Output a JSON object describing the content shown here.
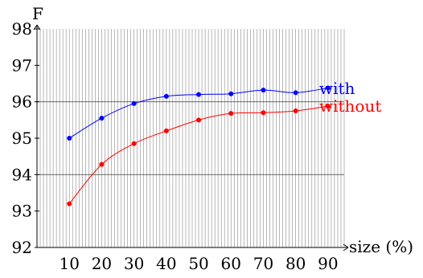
{
  "chart_data": {
    "type": "line",
    "title": "",
    "xlabel": "size (%)",
    "ylabel": "F",
    "x": [
      10,
      20,
      30,
      40,
      50,
      60,
      70,
      80,
      90
    ],
    "xlim": [
      0,
      95
    ],
    "ylim": [
      92,
      98
    ],
    "y_ticks": [
      92,
      93,
      94,
      95,
      96,
      97,
      98
    ],
    "x_ticks": [
      10,
      20,
      30,
      40,
      50,
      60,
      70,
      80,
      90
    ],
    "grid": true,
    "series": [
      {
        "name": "with",
        "color": "#0000ff",
        "values": [
          95.0,
          95.55,
          95.95,
          96.15,
          96.2,
          96.22,
          96.32,
          96.25,
          96.38
        ]
      },
      {
        "name": "without",
        "color": "#ff0000",
        "values": [
          93.2,
          94.28,
          94.85,
          95.2,
          95.5,
          95.68,
          95.7,
          95.75,
          95.88
        ]
      }
    ]
  }
}
